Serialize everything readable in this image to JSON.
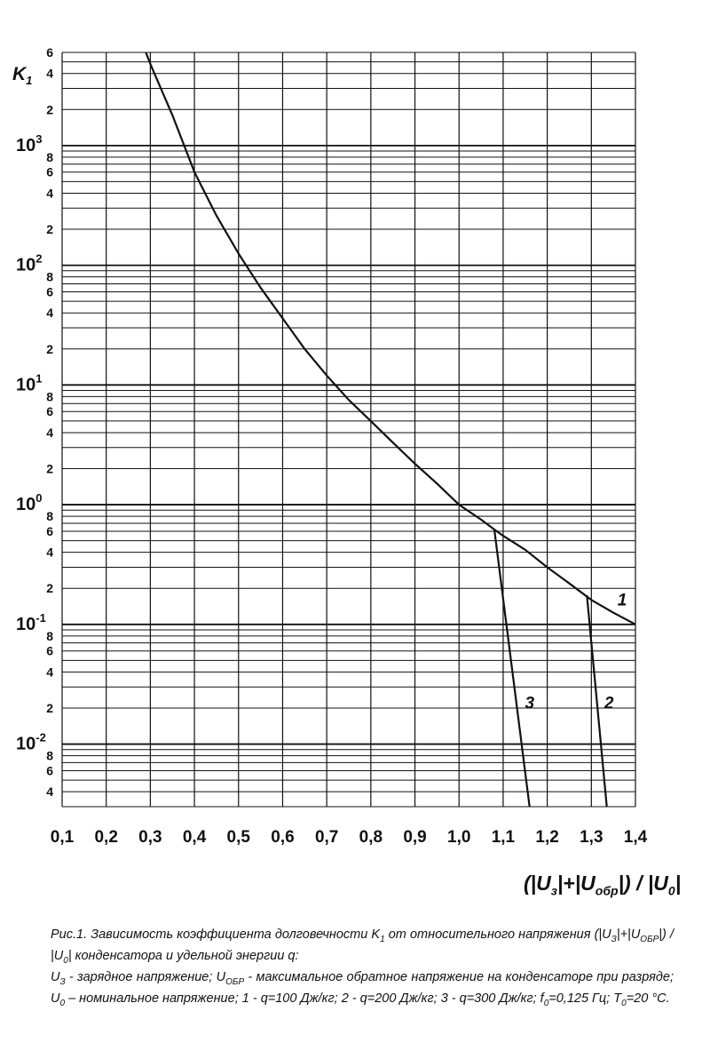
{
  "chart_data": {
    "type": "line",
    "y_scale": "log",
    "ylim": [
      0.003,
      6000
    ],
    "xlim": [
      0.1,
      1.4
    ],
    "grid": true,
    "ylabel": {
      "main": "K",
      "sub": "1"
    },
    "xlabel": {
      "parts": [
        {
          "t": "(|U"
        },
        {
          "sub": "з"
        },
        {
          "t": "|+|U"
        },
        {
          "sub": "обр"
        },
        {
          "t": "|) / |U"
        },
        {
          "sub": "0"
        },
        {
          "t": "|"
        }
      ]
    },
    "x_ticks": [
      {
        "v": 0.1,
        "label": "0,1"
      },
      {
        "v": 0.2,
        "label": "0,2"
      },
      {
        "v": 0.3,
        "label": "0,3"
      },
      {
        "v": 0.4,
        "label": "0,4"
      },
      {
        "v": 0.5,
        "label": "0,5"
      },
      {
        "v": 0.6,
        "label": "0,6"
      },
      {
        "v": 0.7,
        "label": "0,7"
      },
      {
        "v": 0.8,
        "label": "0,8"
      },
      {
        "v": 0.9,
        "label": "0,9"
      },
      {
        "v": 1.0,
        "label": "1,0"
      },
      {
        "v": 1.1,
        "label": "1,1"
      },
      {
        "v": 1.2,
        "label": "1,2"
      },
      {
        "v": 1.3,
        "label": "1,3"
      },
      {
        "v": 1.4,
        "label": "1,4"
      }
    ],
    "y_decades": [
      {
        "v": 1000,
        "base": "10",
        "exp": "3"
      },
      {
        "v": 100,
        "base": "10",
        "exp": "2"
      },
      {
        "v": 10,
        "base": "10",
        "exp": "1"
      },
      {
        "v": 1,
        "base": "10",
        "exp": "0"
      },
      {
        "v": 0.1,
        "base": "10",
        "exp": "-1"
      },
      {
        "v": 0.01,
        "base": "10",
        "exp": "-2"
      }
    ],
    "y_minor_labels": [
      {
        "v": 6000,
        "label": "6"
      },
      {
        "v": 4000,
        "label": "4"
      },
      {
        "v": 2000,
        "label": "2"
      },
      {
        "v": 800,
        "label": "8"
      },
      {
        "v": 600,
        "label": "6"
      },
      {
        "v": 400,
        "label": "4"
      },
      {
        "v": 200,
        "label": "2"
      },
      {
        "v": 80,
        "label": "8"
      },
      {
        "v": 60,
        "label": "6"
      },
      {
        "v": 40,
        "label": "4"
      },
      {
        "v": 20,
        "label": "2"
      },
      {
        "v": 8,
        "label": "8"
      },
      {
        "v": 6,
        "label": "6"
      },
      {
        "v": 4,
        "label": "4"
      },
      {
        "v": 2,
        "label": "2"
      },
      {
        "v": 0.8,
        "label": "8"
      },
      {
        "v": 0.6,
        "label": "6"
      },
      {
        "v": 0.4,
        "label": "4"
      },
      {
        "v": 0.2,
        "label": "2"
      },
      {
        "v": 0.08,
        "label": "8"
      },
      {
        "v": 0.06,
        "label": "6"
      },
      {
        "v": 0.04,
        "label": "4"
      },
      {
        "v": 0.02,
        "label": "2"
      },
      {
        "v": 0.008,
        "label": "8"
      },
      {
        "v": 0.006,
        "label": "6"
      },
      {
        "v": 0.004,
        "label": "4"
      }
    ],
    "series": [
      {
        "name": "1",
        "label_at": {
          "x": 1.37,
          "y": 0.16
        },
        "points": [
          [
            0.29,
            6000
          ],
          [
            0.3,
            4800
          ],
          [
            0.35,
            1800
          ],
          [
            0.4,
            600
          ],
          [
            0.45,
            260
          ],
          [
            0.5,
            125
          ],
          [
            0.55,
            65
          ],
          [
            0.6,
            36
          ],
          [
            0.65,
            20
          ],
          [
            0.7,
            12
          ],
          [
            0.75,
            7.5
          ],
          [
            0.8,
            5
          ],
          [
            0.85,
            3.3
          ],
          [
            0.9,
            2.2
          ],
          [
            0.95,
            1.5
          ],
          [
            1.0,
            1.0
          ],
          [
            1.05,
            0.75
          ],
          [
            1.08,
            0.62
          ],
          [
            1.1,
            0.55
          ],
          [
            1.15,
            0.42
          ],
          [
            1.2,
            0.3
          ],
          [
            1.25,
            0.22
          ],
          [
            1.3,
            0.16
          ],
          [
            1.35,
            0.125
          ],
          [
            1.4,
            0.1
          ]
        ]
      },
      {
        "name": "2",
        "label_at": {
          "x": 1.34,
          "y": 0.022
        },
        "points": [
          [
            1.29,
            0.175
          ],
          [
            1.335,
            0.003
          ]
        ]
      },
      {
        "name": "3",
        "label_at": {
          "x": 1.16,
          "y": 0.022
        },
        "points": [
          [
            1.08,
            0.62
          ],
          [
            1.16,
            0.003
          ]
        ]
      }
    ]
  },
  "caption": {
    "title_parts": [
      {
        "t": "Рис.1. Зависимость коэффициента долговечности K"
      },
      {
        "sub": "1"
      },
      {
        "t": " от относительного напряжения (|U"
      },
      {
        "sub": "З"
      },
      {
        "t": "|+|U"
      },
      {
        "sub": "ОБР"
      },
      {
        "t": "|) / |U"
      },
      {
        "sub": "0"
      },
      {
        "t": "| конденсатора и удельной энергии q:"
      }
    ],
    "body_parts": [
      {
        "t": "U"
      },
      {
        "sub": "З"
      },
      {
        "t": " - зарядное напряжение; U"
      },
      {
        "sub": "ОБР"
      },
      {
        "t": " - максимальное обратное напряжение на конденсаторе при разряде; U"
      },
      {
        "sub": "0"
      },
      {
        "t": " – номинальное напряжение; 1 - q=100 Дж/кг; 2 - q=200 Дж/кг; 3 - q=300 Дж/кг; f"
      },
      {
        "sub": "0"
      },
      {
        "t": "=0,125 Гц; T"
      },
      {
        "sub": "0"
      },
      {
        "t": "=20 °C."
      }
    ]
  }
}
